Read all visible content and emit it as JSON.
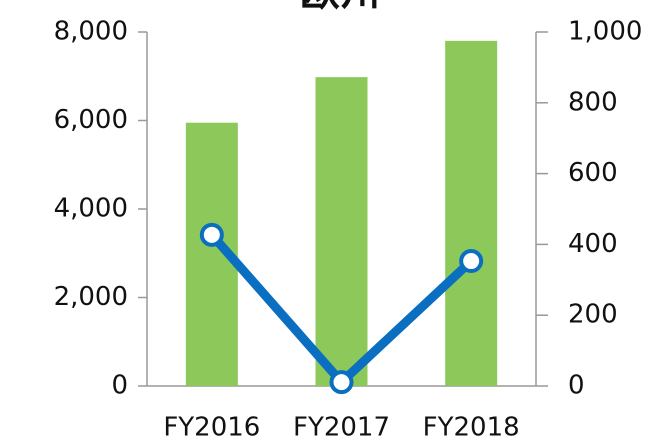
{
  "chart_data": {
    "type": "bar_line",
    "title": "欧州",
    "categories": [
      "FY2016",
      "FY2017",
      "FY2018"
    ],
    "series": [
      {
        "type": "bar",
        "color": "#8cc85a",
        "values": [
          5950,
          6980,
          7800
        ]
      },
      {
        "type": "line",
        "axis": "y2",
        "color": "#0a6fc0",
        "values": [
          427,
          11,
          353
        ]
      }
    ],
    "ylim": [
      0,
      8000
    ],
    "yticks": [
      0,
      {
        "value": 2000,
        "label": "2,000"
      },
      {
        "value": 4000,
        "label": "4,000"
      },
      {
        "value": 6000,
        "label": "6,000"
      },
      {
        "value": 8000,
        "label": "8,000"
      }
    ],
    "y2lim": [
      0,
      1000
    ],
    "y2ticks": [
      0,
      200,
      400,
      600,
      800,
      {
        "value": 1000,
        "label": "1,000"
      }
    ]
  }
}
